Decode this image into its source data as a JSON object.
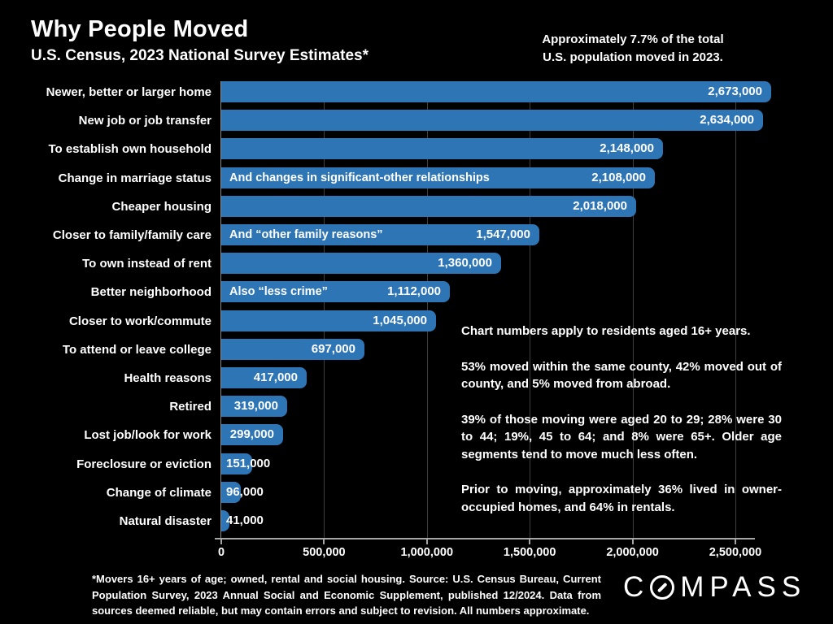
{
  "slide": {
    "title": "Why People Moved",
    "subtitle": "U.S. Census, 2023 National Survey Estimates*",
    "top_note": {
      "line1": "Approximately 7.7% of the total",
      "line2": "U.S. population moved in 2023."
    },
    "colors": {
      "background": "#000000",
      "bar": "#2e75b6",
      "text": "#ffffff",
      "gridline": "#3f3f3f",
      "axis": "#a6a6a6"
    }
  },
  "chart_data": {
    "type": "bar",
    "orientation": "horizontal",
    "title": "Why People Moved",
    "subtitle": "U.S. Census, 2023 National Survey Estimates*",
    "xlabel": "",
    "ylabel": "",
    "xlim": [
      0,
      2750000
    ],
    "grid": "vertical",
    "legend": "none",
    "bar_color": "#2e75b6",
    "categories": [
      "Newer, better or larger home",
      "New job or job transfer",
      "To establish own household",
      "Change in marriage status",
      "Cheaper housing",
      "Closer to family/family care",
      "To own instead of rent",
      "Better neighborhood",
      "Closer to work/commute",
      "To attend or leave college",
      "Health reasons",
      "Retired",
      "Lost job/look for work",
      "Foreclosure or eviction",
      "Change of climate",
      "Natural disaster"
    ],
    "values": [
      2673000,
      2634000,
      2148000,
      2108000,
      2018000,
      1547000,
      1360000,
      1112000,
      1045000,
      697000,
      417000,
      319000,
      299000,
      151000,
      96000,
      41000
    ],
    "value_labels": [
      "2,673,000",
      "2,634,000",
      "2,148,000",
      "2,108,000",
      "2,018,000",
      "1,547,000",
      "1,360,000",
      "1,112,000",
      "1,045,000",
      "697,000",
      "417,000",
      "319,000",
      "299,000",
      "151,000",
      "96,000",
      "41,000"
    ],
    "annotations": [
      null,
      null,
      null,
      "And changes in significant-other relationships",
      null,
      "And “other family reasons”",
      null,
      "Also “less crime”",
      null,
      null,
      null,
      null,
      null,
      null,
      null,
      null
    ],
    "x_ticks": [
      {
        "value": 0,
        "label": "0"
      },
      {
        "value": 500000,
        "label": "500,000"
      },
      {
        "value": 1000000,
        "label": "1,000,000"
      },
      {
        "value": 1500000,
        "label": "1,500,000"
      },
      {
        "value": 2000000,
        "label": "2,000,000"
      },
      {
        "value": 2500000,
        "label": "2,500,000"
      }
    ]
  },
  "side_note": {
    "paragraphs": [
      "Chart numbers apply to residents aged 16+ years.",
      "53% moved within the same county, 42% moved out of county, and 5% moved from abroad.",
      "39% of those moving were aged 20 to 29; 28% were 30 to 44; 19%, 45 to 64; and 8% were 65+. Older age segments tend to move much less often.",
      "Prior to moving, approximately 36% lived in owner-occupied homes, and 64% in rentals."
    ]
  },
  "footnote": "*Movers 16+ years of age; owned, rental and social housing. Source: U.S. Census Bureau, Current Population Survey, 2023 Annual Social and Economic Supplement, published 12/2024. Data from sources deemed reliable, but may contain errors and subject to revision. All numbers approximate.",
  "logo": {
    "brand": "COMPASS",
    "before_o": "C",
    "after_o": "MPASS"
  }
}
